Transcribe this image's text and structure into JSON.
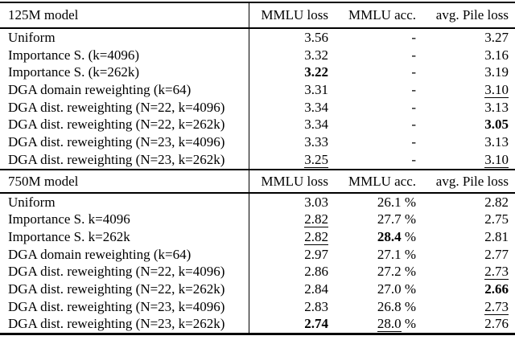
{
  "table": {
    "colors": {
      "text": "#000000",
      "background": "#ffffff",
      "rule": "#000000"
    },
    "columns": [
      "MMLU loss",
      "MMLU acc.",
      "avg. Pile loss"
    ],
    "sections": [
      {
        "model_label": "125M model",
        "rows": [
          {
            "method": "Uniform",
            "cells": [
              {
                "v": "3.56"
              },
              {
                "v": "-"
              },
              {
                "v": "3.27"
              }
            ]
          },
          {
            "method": "Importance S. (k=4096)",
            "cells": [
              {
                "v": "3.32"
              },
              {
                "v": "-"
              },
              {
                "v": "3.16"
              }
            ]
          },
          {
            "method": "Importance S. (k=262k)",
            "cells": [
              {
                "v": "3.22",
                "style": "bold"
              },
              {
                "v": "-"
              },
              {
                "v": "3.19"
              }
            ]
          },
          {
            "method": "DGA domain reweighting (k=64)",
            "cells": [
              {
                "v": "3.31"
              },
              {
                "v": "-"
              },
              {
                "v": "3.10",
                "style": "underline"
              }
            ]
          },
          {
            "method": "DGA dist. reweighting (N=22, k=4096)",
            "cells": [
              {
                "v": "3.34"
              },
              {
                "v": "-"
              },
              {
                "v": "3.13"
              }
            ]
          },
          {
            "method": "DGA dist. reweighting (N=22, k=262k)",
            "cells": [
              {
                "v": "3.34"
              },
              {
                "v": "-"
              },
              {
                "v": "3.05",
                "style": "bold"
              }
            ]
          },
          {
            "method": "DGA dist. reweighting (N=23, k=4096)",
            "cells": [
              {
                "v": "3.33"
              },
              {
                "v": "-"
              },
              {
                "v": "3.13"
              }
            ]
          },
          {
            "method": "DGA dist. reweighting (N=23, k=262k)",
            "cells": [
              {
                "v": "3.25",
                "style": "underline"
              },
              {
                "v": "-"
              },
              {
                "v": "3.10",
                "style": "underline"
              }
            ]
          }
        ]
      },
      {
        "model_label": "750M model",
        "rows": [
          {
            "method": "Uniform",
            "cells": [
              {
                "v": "3.03"
              },
              {
                "v": "26.1",
                "suffix": " %"
              },
              {
                "v": "2.82"
              }
            ]
          },
          {
            "method": "Importance S. k=4096",
            "cells": [
              {
                "v": "2.82",
                "style": "underline"
              },
              {
                "v": "27.7",
                "suffix": " %"
              },
              {
                "v": "2.75"
              }
            ]
          },
          {
            "method": "Importance S. k=262k",
            "cells": [
              {
                "v": "2.82",
                "style": "underline"
              },
              {
                "v": "28.4",
                "suffix": " %",
                "style": "bold"
              },
              {
                "v": "2.81"
              }
            ]
          },
          {
            "method": "DGA domain reweighting (k=64)",
            "cells": [
              {
                "v": "2.97"
              },
              {
                "v": "27.1",
                "suffix": " %"
              },
              {
                "v": "2.77"
              }
            ]
          },
          {
            "method": "DGA dist. reweighting (N=22, k=4096)",
            "cells": [
              {
                "v": "2.86"
              },
              {
                "v": "27.2",
                "suffix": " %"
              },
              {
                "v": "2.73",
                "style": "underline"
              }
            ]
          },
          {
            "method": "DGA dist. reweighting (N=22, k=262k)",
            "cells": [
              {
                "v": "2.84"
              },
              {
                "v": "27.0",
                "suffix": " %"
              },
              {
                "v": "2.66",
                "style": "bold"
              }
            ]
          },
          {
            "method": "DGA dist. reweighting (N=23, k=4096)",
            "cells": [
              {
                "v": "2.83"
              },
              {
                "v": "26.8",
                "suffix": " %"
              },
              {
                "v": "2.73",
                "style": "underline"
              }
            ]
          },
          {
            "method": "DGA dist. reweighting (N=23, k=262k)",
            "cells": [
              {
                "v": "2.74",
                "style": "bold"
              },
              {
                "v": "28.0",
                "suffix": " %",
                "style": "underline"
              },
              {
                "v": "2.76"
              }
            ]
          }
        ]
      }
    ]
  }
}
